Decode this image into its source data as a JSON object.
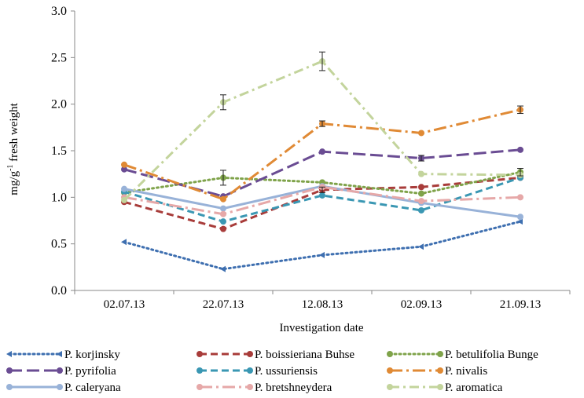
{
  "chart_data": {
    "type": "line",
    "title": "",
    "xlabel": "Investigation date",
    "ylabel": "mg/g",
    "ylabel_sup": "-1",
    "ylabel_tail": " fresh weight",
    "categories": [
      "02.07.13",
      "22.07.13",
      "12.08.13",
      "02.09.13",
      "21.09.13"
    ],
    "ylim": [
      0,
      3
    ],
    "yticks": [
      "0.0",
      "0.5",
      "1.0",
      "1.5",
      "2.0",
      "2.5",
      "3.0"
    ],
    "grid": false,
    "legend_position": "bottom",
    "series": [
      {
        "name": "P. korjinsky",
        "values": [
          0.52,
          0.23,
          0.38,
          0.47,
          0.74
        ],
        "color": "#3e6fb0",
        "dash": "dot",
        "marker": "triangle"
      },
      {
        "name": "P. boissieriana Buhse",
        "values": [
          0.95,
          0.66,
          1.08,
          1.11,
          1.21
        ],
        "color": "#a83c3a",
        "dash": "dash",
        "marker": "circle"
      },
      {
        "name": "P. betulifolia Bunge",
        "values": [
          1.05,
          1.21,
          1.16,
          1.04,
          1.27
        ],
        "color": "#7fa34a",
        "dash": "dot",
        "marker": "circle"
      },
      {
        "name": "P. pyrifolia",
        "values": [
          1.3,
          1.01,
          1.49,
          1.42,
          1.51
        ],
        "color": "#6a4c93",
        "dash": "longdash",
        "marker": "circle"
      },
      {
        "name": "P. ussuriensis",
        "values": [
          1.06,
          0.74,
          1.02,
          0.86,
          1.21
        ],
        "color": "#3a97b3",
        "dash": "dash",
        "marker": "circle"
      },
      {
        "name": "P. nivalis",
        "values": [
          1.35,
          0.98,
          1.79,
          1.69,
          1.94
        ],
        "color": "#e08a35",
        "dash": "longdashdot",
        "marker": "circle"
      },
      {
        "name": "P. caleryana",
        "values": [
          1.09,
          0.88,
          1.12,
          0.94,
          0.79
        ],
        "color": "#98b2d8",
        "dash": "solid",
        "marker": "circle"
      },
      {
        "name": "P. bretshneydera",
        "values": [
          1.0,
          0.82,
          1.11,
          0.96,
          1.0
        ],
        "color": "#e6a8a8",
        "dash": "longdashdot",
        "marker": "circle"
      },
      {
        "name": "P. aromatica",
        "values": [
          0.97,
          2.02,
          2.46,
          1.25,
          1.24
        ],
        "color": "#c3d49c",
        "dash": "dashdot",
        "marker": "circle"
      }
    ],
    "error_bars": [
      {
        "series": 1,
        "index": 2,
        "err": 0.03
      },
      {
        "series": 2,
        "index": 1,
        "err": 0.08
      },
      {
        "series": 2,
        "index": 4,
        "err": 0.04
      },
      {
        "series": 3,
        "index": 3,
        "err": 0.03
      },
      {
        "series": 5,
        "index": 2,
        "err": 0.03
      },
      {
        "series": 5,
        "index": 4,
        "err": 0.04
      },
      {
        "series": 8,
        "index": 1,
        "err": 0.08
      },
      {
        "series": 8,
        "index": 2,
        "err": 0.1
      }
    ]
  }
}
